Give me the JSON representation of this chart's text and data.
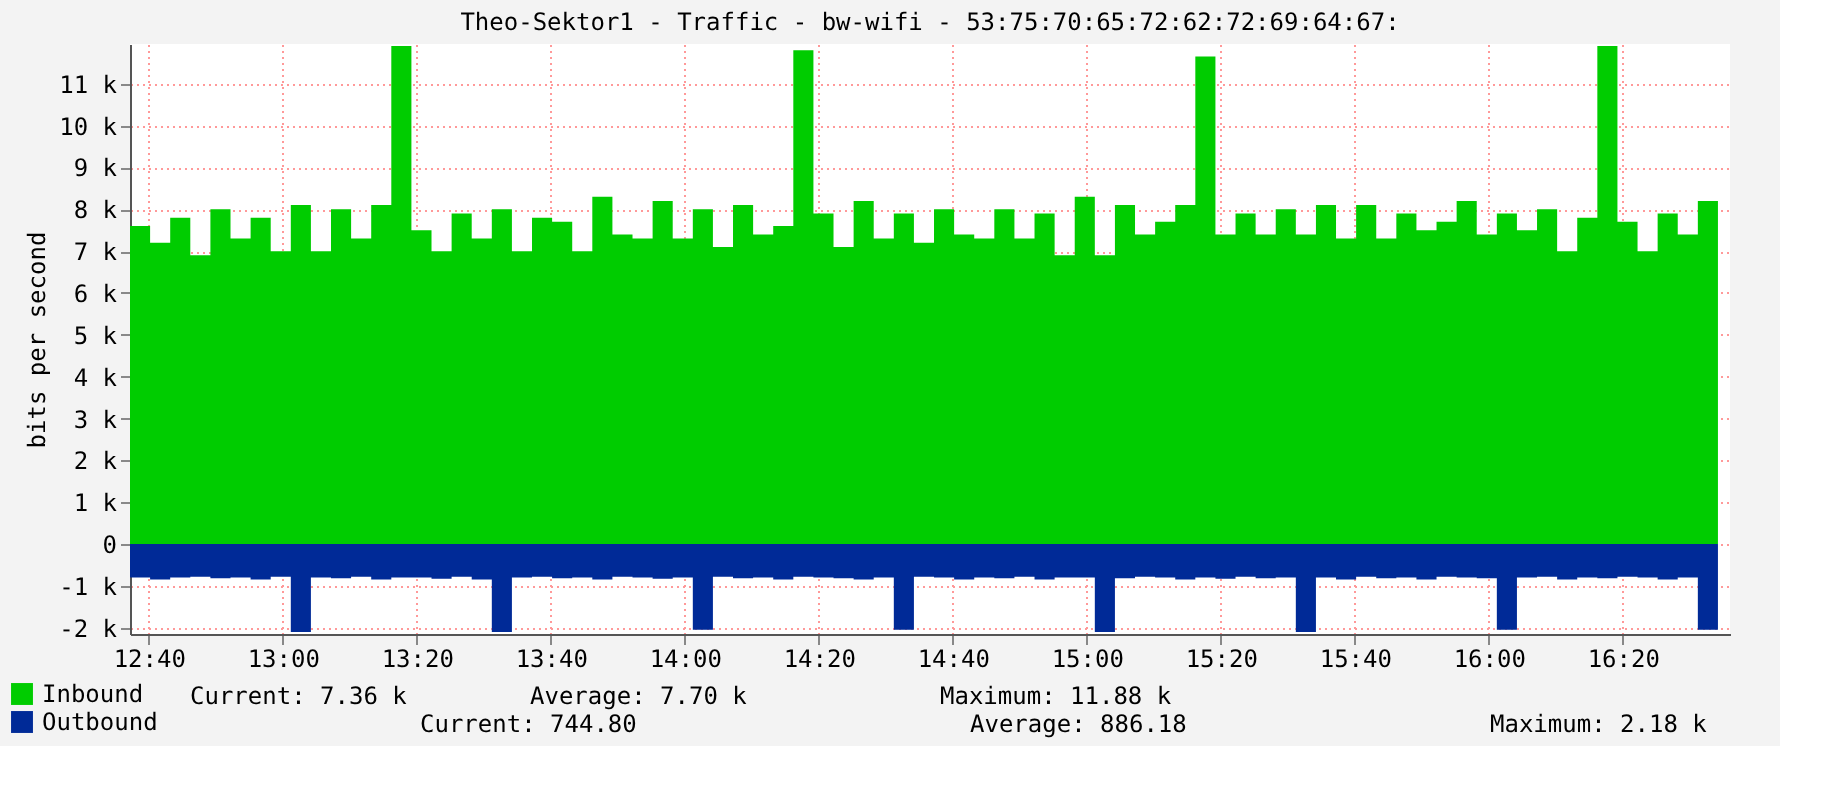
{
  "chart_data": {
    "type": "area",
    "title": "Theo-Sektor1 - Traffic - bw-wifi - 53:75:70:65:72:62:72:69:64:67:",
    "ylabel": "bits per second",
    "x": [
      12.62,
      12.67,
      12.72,
      12.77,
      12.82,
      12.87,
      12.92,
      12.97,
      13.02,
      13.07,
      13.12,
      13.17,
      13.22,
      13.27,
      13.32,
      13.37,
      13.42,
      13.47,
      13.52,
      13.57,
      13.62,
      13.67,
      13.72,
      13.77,
      13.82,
      13.87,
      13.92,
      13.97,
      14.02,
      14.07,
      14.12,
      14.17,
      14.22,
      14.27,
      14.32,
      14.37,
      14.42,
      14.47,
      14.52,
      14.57,
      14.62,
      14.67,
      14.72,
      14.77,
      14.82,
      14.87,
      14.92,
      14.97,
      15.02,
      15.07,
      15.12,
      15.17,
      15.22,
      15.27,
      15.32,
      15.37,
      15.42,
      15.47,
      15.52,
      15.57,
      15.62,
      15.67,
      15.72,
      15.77,
      15.82,
      15.87,
      15.92,
      15.97,
      16.02,
      16.07,
      16.12,
      16.17,
      16.22,
      16.27,
      16.32,
      16.37,
      16.42,
      16.47,
      16.52,
      16.57
    ],
    "series": [
      {
        "name": "Inbound",
        "color": "#00cc00",
        "values": [
          7600,
          7200,
          7800,
          6900,
          8000,
          7300,
          7800,
          7000,
          8100,
          7000,
          8000,
          7300,
          8100,
          11900,
          7500,
          7000,
          7900,
          7300,
          8000,
          7000,
          7800,
          7700,
          7000,
          8300,
          7400,
          7300,
          8200,
          7300,
          8000,
          7100,
          8100,
          7400,
          7600,
          11800,
          7900,
          7100,
          8200,
          7300,
          7900,
          7200,
          8000,
          7400,
          7300,
          8000,
          7300,
          7900,
          6900,
          8300,
          6900,
          8100,
          7400,
          7700,
          8100,
          11650,
          7400,
          7900,
          7400,
          8000,
          7400,
          8100,
          7300,
          8100,
          7300,
          7900,
          7500,
          7700,
          8200,
          7400,
          7900,
          7500,
          8000,
          7000,
          7800,
          11900,
          7700,
          7000,
          7900,
          7400,
          8200,
          7360
        ]
      },
      {
        "name": "Outbound",
        "color": "#002a97",
        "values": [
          -800,
          -850,
          -800,
          -780,
          -820,
          -800,
          -850,
          -780,
          -2100,
          -800,
          -820,
          -780,
          -850,
          -800,
          -800,
          -830,
          -780,
          -850,
          -2100,
          -800,
          -780,
          -820,
          -800,
          -850,
          -780,
          -800,
          -830,
          -800,
          -2050,
          -780,
          -820,
          -800,
          -850,
          -780,
          -800,
          -820,
          -850,
          -800,
          -2050,
          -780,
          -800,
          -850,
          -800,
          -820,
          -780,
          -850,
          -800,
          -800,
          -2100,
          -820,
          -780,
          -800,
          -850,
          -800,
          -830,
          -780,
          -820,
          -800,
          -2100,
          -800,
          -850,
          -780,
          -820,
          -800,
          -850,
          -780,
          -800,
          -820,
          -2050,
          -800,
          -780,
          -850,
          -800,
          -820,
          -780,
          -800,
          -850,
          -800,
          -2050,
          -745
        ]
      }
    ],
    "xlim": [
      12.62,
      16.6
    ],
    "xticks": [
      {
        "value": 12.6667,
        "label": "12:40"
      },
      {
        "value": 13,
        "label": "13:00"
      },
      {
        "value": 13.3333,
        "label": "13:20"
      },
      {
        "value": 13.6667,
        "label": "13:40"
      },
      {
        "value": 14,
        "label": "14:00"
      },
      {
        "value": 14.3333,
        "label": "14:20"
      },
      {
        "value": 14.6667,
        "label": "14:40"
      },
      {
        "value": 15,
        "label": "15:00"
      },
      {
        "value": 15.3333,
        "label": "15:20"
      },
      {
        "value": 15.6667,
        "label": "15:40"
      },
      {
        "value": 16,
        "label": "16:00"
      },
      {
        "value": 16.3333,
        "label": "16:20"
      }
    ],
    "ylim": [
      -2150,
      11950
    ],
    "yticks": [
      {
        "value": -2000,
        "label": "-2 k"
      },
      {
        "value": -1000,
        "label": "-1 k"
      },
      0,
      {
        "value": 1000,
        "label": "1 k"
      },
      {
        "value": 2000,
        "label": "2 k"
      },
      {
        "value": 3000,
        "label": "3 k"
      },
      {
        "value": 4000,
        "label": "4 k"
      },
      {
        "value": 5000,
        "label": "5 k"
      },
      {
        "value": 6000,
        "label": "6 k"
      },
      {
        "value": 7000,
        "label": "7 k"
      },
      {
        "value": 8000,
        "label": "8 k"
      },
      {
        "value": 9000,
        "label": "9 k"
      },
      {
        "value": 10000,
        "label": "10 k"
      },
      {
        "value": 11000,
        "label": "11 k"
      }
    ],
    "grid": true,
    "legend": "bottom left",
    "annotations": [
      "Current: 7.36 k",
      "Average: 7.70 k",
      "Maximum: 11.88 k",
      "Current: 744.80",
      "Average: 886.18",
      "Maximum: 2.18 k"
    ]
  }
}
